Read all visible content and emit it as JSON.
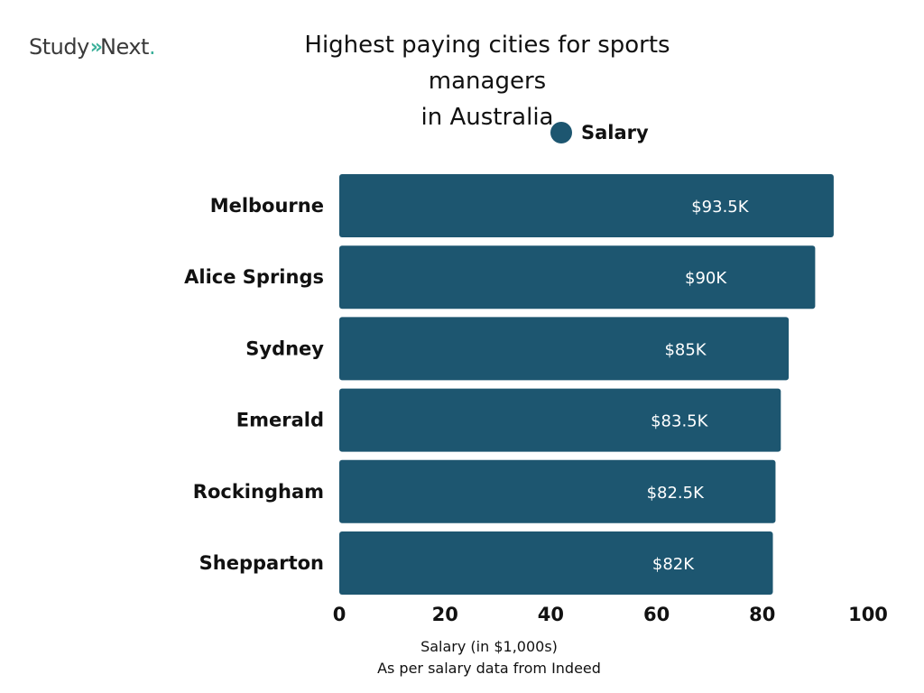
{
  "brand": {
    "name_left": "Study",
    "name_right": "Next",
    "chevron_glyph": "»",
    "dot_glyph": ".",
    "accent": "#3cb09a"
  },
  "chart_data": {
    "type": "bar",
    "orientation": "horizontal",
    "title_line1": "Highest paying cities for sports managers",
    "title_line2": "in Australia",
    "categories": [
      "Melbourne",
      "Alice Springs",
      "Sydney",
      "Emerald",
      "Rockingham",
      "Shepparton"
    ],
    "series": [
      {
        "name": "Salary",
        "color": "#1d5670",
        "values": [
          93.5,
          90,
          85,
          83.5,
          82.5,
          82
        ],
        "data_labels": [
          "$93.5K",
          "$90K",
          "$85K",
          "$83.5K",
          "$82.5K",
          "$82K"
        ]
      }
    ],
    "xlabel": "Salary (in $1,000s)",
    "source_note": "As per salary data from Indeed",
    "xlim": [
      0,
      100
    ],
    "xticks": [
      0,
      20,
      40,
      60,
      80,
      100
    ],
    "grid": false,
    "legend_position": "top-center"
  }
}
